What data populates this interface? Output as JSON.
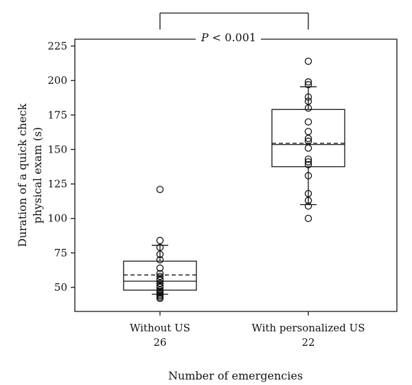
{
  "chart_data": {
    "type": "box",
    "title": "",
    "xlabel": "Number of emergencies",
    "ylabel_line1": "Duration of a quick check",
    "ylabel_line2": "physical exam (s)",
    "ylim": [
      30,
      235
    ],
    "yticks": [
      50,
      75,
      100,
      125,
      150,
      175,
      200,
      225
    ],
    "ytick_labels": [
      "50",
      "75",
      "100",
      "125",
      "150",
      "175",
      "200",
      "225"
    ],
    "significance": {
      "p_symbol": "P",
      "p_rest": " < 0.001"
    },
    "groups": [
      {
        "label": "Without US",
        "count_label": "26",
        "stats": {
          "q1": 48,
          "median": 54.5,
          "q3": 69,
          "mean": 59,
          "whisker_low": 45,
          "whisker_high": 80.5
        },
        "points": [
          121,
          84,
          79,
          74,
          70,
          64,
          60,
          58,
          56,
          55,
          53,
          51,
          50,
          48,
          47,
          46,
          45,
          44,
          43,
          42
        ]
      },
      {
        "label": "With personalized US",
        "count_label": "22",
        "stats": {
          "q1": 137.5,
          "median": 153.5,
          "q3": 179,
          "mean": 154.5,
          "whisker_low": 110,
          "whisker_high": 195.5
        },
        "points": [
          214,
          199,
          197,
          188,
          185,
          180,
          170,
          163,
          158,
          156,
          151,
          143,
          141,
          139,
          131,
          118,
          113,
          109,
          100
        ]
      }
    ]
  }
}
